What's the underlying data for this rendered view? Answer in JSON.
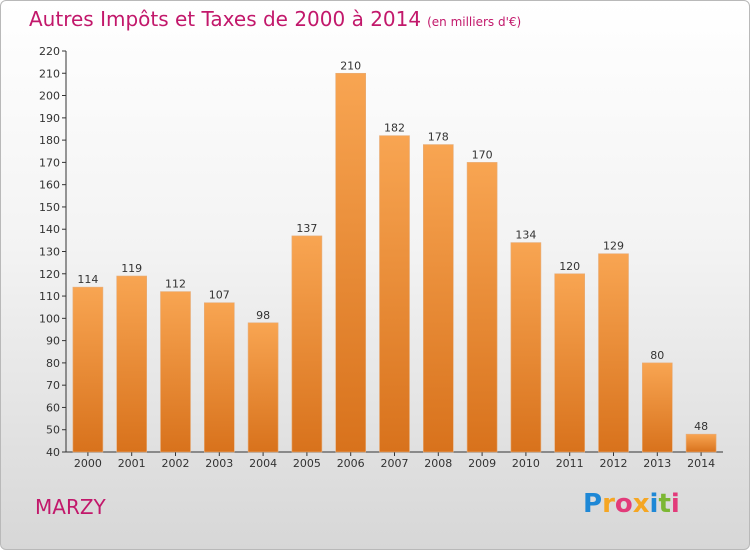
{
  "title": "Autres Impôts et Taxes de 2000 à 2014",
  "unit": "(en milliers d'€)",
  "commune": "MARZY",
  "logo": {
    "letters": [
      "P",
      "r",
      "o",
      "x",
      "i",
      "t",
      "i"
    ],
    "colors": [
      "#1e88d6",
      "#f5a623",
      "#e23b7a",
      "#f5a623",
      "#1e88d6",
      "#7cb733",
      "#e23b7a"
    ]
  },
  "colors": {
    "bar": "#f0913a",
    "bar_light": "#f8b063",
    "title": "#c2186b"
  },
  "chart_data": {
    "type": "bar",
    "title": "Autres Impôts et Taxes de 2000 à 2014",
    "subtitle": "(en milliers d'€)",
    "categories": [
      "2000",
      "2001",
      "2002",
      "2003",
      "2004",
      "2005",
      "2006",
      "2007",
      "2008",
      "2009",
      "2010",
      "2011",
      "2012",
      "2013",
      "2014"
    ],
    "values": [
      114,
      119,
      112,
      107,
      98,
      137,
      210,
      182,
      178,
      170,
      134,
      120,
      129,
      80,
      48
    ],
    "ylim": [
      40,
      220
    ],
    "yticks": [
      40,
      50,
      60,
      70,
      80,
      90,
      100,
      110,
      120,
      130,
      140,
      150,
      160,
      170,
      180,
      190,
      200,
      210,
      220
    ],
    "grid": false
  }
}
